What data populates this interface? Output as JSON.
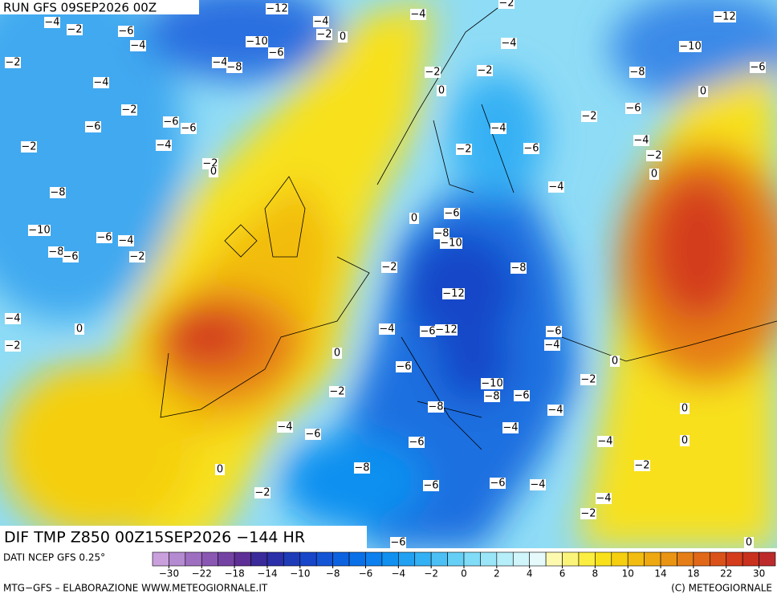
{
  "header": {
    "run": "RUN GFS 09SEP2026 00Z"
  },
  "map": {
    "title": "DIF TMP Z850 00Z15SEP2026 −144 HR",
    "contour_labels": [
      -4,
      -2,
      -6,
      -4,
      -2,
      -4,
      -2,
      -6,
      -6,
      -6,
      -4,
      -2,
      -2,
      0,
      -8,
      -10,
      -6,
      -4,
      -8,
      -6,
      -2,
      -4,
      0,
      -2,
      -4,
      -8,
      -10,
      -6,
      -12,
      -4,
      -2,
      0,
      -4,
      -4,
      -2,
      -2,
      0,
      -4,
      -2,
      -6,
      -2,
      -4,
      0,
      -6,
      -8,
      -10,
      -2,
      -8,
      -12,
      -4,
      -6,
      -12,
      0,
      -6,
      -4,
      -6,
      -10,
      -8,
      -6,
      -2,
      0,
      -2,
      -8,
      -4,
      -4,
      -4,
      -6,
      -6,
      -4,
      0,
      0,
      -2,
      0,
      -8,
      -6,
      -6,
      -4,
      -2,
      -4,
      -2,
      -6,
      0,
      -12,
      -10,
      -6,
      -8,
      0,
      -6,
      -4,
      -2,
      0,
      -2
    ]
  },
  "colorbar": {
    "source": "DATI NCEP GFS 0.25°",
    "colors": [
      "#c9a0dc",
      "#b48ad0",
      "#9e6fc0",
      "#8a58b3",
      "#7442a3",
      "#5e2f96",
      "#3a2a9a",
      "#2b2fa8",
      "#1f3cb8",
      "#1846c8",
      "#1455d6",
      "#0d62e0",
      "#0a70e8",
      "#0c80ee",
      "#1190f0",
      "#22a0f2",
      "#34b0f4",
      "#4cc0f5",
      "#66cff6",
      "#80dcf7",
      "#9ae6f8",
      "#b6eef9",
      "#d0f5fa",
      "#e6fafb",
      "#fdfab0",
      "#fbf47a",
      "#fbee40",
      "#f8e11a",
      "#f5cf10",
      "#f2bc10",
      "#eea812",
      "#ea9414",
      "#e57e16",
      "#e06818",
      "#da521a",
      "#d43c1c",
      "#c9301e",
      "#bd2a2c"
    ],
    "ticks": [
      {
        "value": -30,
        "label": "−30"
      },
      {
        "value": -22,
        "label": "−22"
      },
      {
        "value": -18,
        "label": "−18"
      },
      {
        "value": -14,
        "label": "−14"
      },
      {
        "value": -10,
        "label": "−10"
      },
      {
        "value": -8,
        "label": "−8"
      },
      {
        "value": -6,
        "label": "−6"
      },
      {
        "value": -4,
        "label": "−4"
      },
      {
        "value": -2,
        "label": "−2"
      },
      0,
      2,
      4,
      6,
      8,
      10,
      14,
      18,
      22,
      30
    ]
  },
  "footer": {
    "credit": "MTG-GFS – ELABORAZIONE WWW.METEOGIORNALE.IT",
    "copyright": "(C) METEOGIORNALE"
  }
}
